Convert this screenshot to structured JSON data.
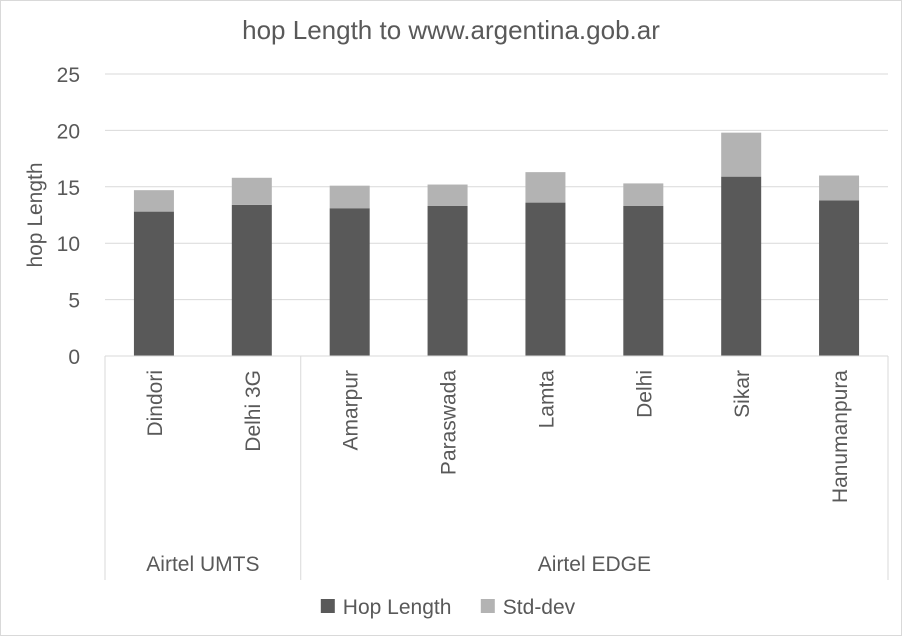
{
  "chart_data": {
    "type": "bar",
    "stacked": true,
    "title": "hop Length to www.argentina.gob.ar",
    "ylabel": "hop Length",
    "xlabel": "",
    "ylim": [
      0,
      25
    ],
    "yticks": [
      "0",
      "5",
      "10",
      "15",
      "20",
      "25"
    ],
    "grid": true,
    "legend_position": "bottom",
    "categories": [
      "Dindori",
      "Delhi 3G",
      "Amarpur",
      "Paraswada",
      "Lamta",
      "Delhi",
      "Sikar",
      "Hanumanpura"
    ],
    "groups": [
      {
        "label": "Airtel UMTS",
        "count": 2
      },
      {
        "label": "Airtel EDGE",
        "count": 6
      }
    ],
    "series": [
      {
        "name": "Hop Length",
        "color": "#595959",
        "values": [
          12.8,
          13.4,
          13.1,
          13.3,
          13.6,
          13.3,
          15.9,
          13.8
        ]
      },
      {
        "name": "Std-dev",
        "color": "#b3b3b3",
        "values": [
          1.9,
          2.4,
          2.0,
          1.9,
          2.7,
          2.0,
          3.9,
          2.2
        ]
      }
    ]
  }
}
